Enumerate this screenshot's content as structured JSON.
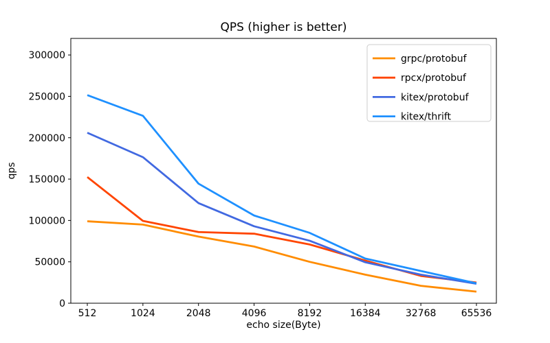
{
  "figure": {
    "background": "#ffffff",
    "spine_color": "#000000",
    "tick_color": "#000000",
    "text_color": "#000000",
    "legend_border_color": "#cccccc",
    "legend_background": "#ffffff"
  },
  "chart_data": {
    "type": "line",
    "title": "QPS (higher is better)",
    "xlabel": "echo size(Byte)",
    "ylabel": "qps",
    "categories": [
      "512",
      "1024",
      "2048",
      "4096",
      "8192",
      "16384",
      "32768",
      "65536"
    ],
    "series": [
      {
        "name": "grpc/protobuf",
        "color": "#ff8c00",
        "values": [
          99000,
          95000,
          80500,
          68500,
          50000,
          34500,
          21000,
          14000
        ]
      },
      {
        "name": "rpcx/protobuf",
        "color": "#ff4500",
        "values": [
          152500,
          99500,
          86000,
          84000,
          71000,
          51500,
          33000,
          25000
        ]
      },
      {
        "name": "kitex/protobuf",
        "color": "#4169e1",
        "values": [
          206000,
          176500,
          121000,
          93000,
          75500,
          49500,
          34500,
          23500
        ]
      },
      {
        "name": "kitex/thrift",
        "color": "#1e90ff",
        "values": [
          251500,
          226500,
          144500,
          106000,
          85000,
          54000,
          39000,
          24000
        ]
      }
    ],
    "yticks": [
      0,
      50000,
      100000,
      150000,
      200000,
      250000,
      300000
    ],
    "ylim": [
      0,
      320000
    ],
    "grid": false,
    "legend_position": "upper right",
    "line_width": 2.8
  }
}
